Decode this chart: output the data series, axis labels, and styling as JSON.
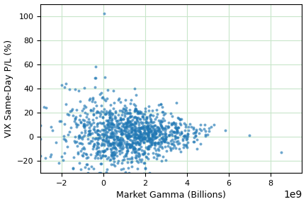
{
  "title": "",
  "xlabel": "Market Gamma (Billions)",
  "ylabel": "VIX Same-Day P/L (%)",
  "point_color": "#1f77b4",
  "point_size": 8,
  "point_alpha": 0.65,
  "xlim": [
    -3000000000.0,
    9500000000.0
  ],
  "ylim": [
    -30,
    110
  ],
  "yticks": [
    -20,
    0,
    20,
    40,
    60,
    80,
    100
  ],
  "xticks": [
    -2000000000.0,
    0,
    2000000000.0,
    4000000000.0,
    6000000000.0,
    8000000000.0
  ],
  "grid_color": "#c8e6c9",
  "background_color": "#ffffff",
  "figsize": [
    4.32,
    2.88
  ],
  "dpi": 100,
  "seed": 42,
  "n_points": 1200,
  "x_mean": 1200000000.0,
  "x_std": 1500000000.0,
  "y_mean": 2.0,
  "y_std": 10.0,
  "outlier_x": 50000000.0,
  "outlier_y": 102.0
}
